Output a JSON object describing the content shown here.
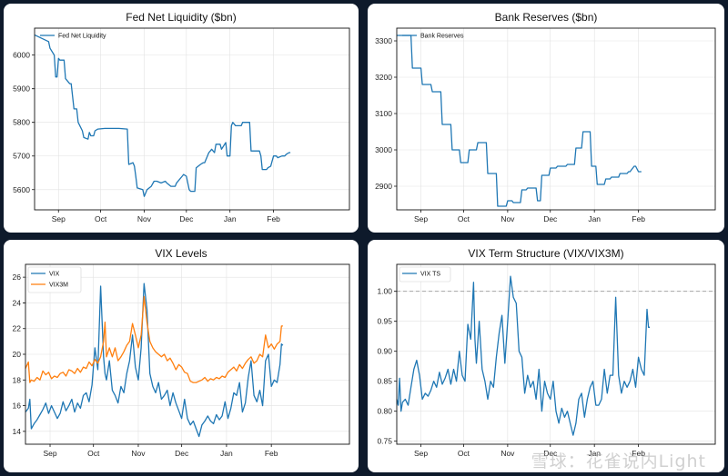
{
  "colors": {
    "blue": "#1f77b4",
    "orange": "#ff7f0e",
    "grid": "#e2e2e2",
    "ref": "#999999"
  },
  "watermark": "雪球：花雀说内Light",
  "chart_data": [
    {
      "id": "liquidity",
      "type": "line",
      "title": "Fed Net Liquidity ($bn)",
      "xlabel": "",
      "ylabel": "",
      "xlim": [
        0,
        224
      ],
      "ylim": [
        5540,
        6080
      ],
      "yticks": [
        5600,
        5700,
        5800,
        5900,
        6000
      ],
      "xticks": [
        {
          "label": "Sep",
          "x": 17
        },
        {
          "label": "Oct",
          "x": 47
        },
        {
          "label": "Nov",
          "x": 78
        },
        {
          "label": "Dec",
          "x": 108
        },
        {
          "label": "Jan",
          "x": 139
        },
        {
          "label": "Feb",
          "x": 170
        }
      ],
      "legend": "top-left",
      "series": [
        {
          "name": "Fed Net Liquidity",
          "color": "blue",
          "x": [
            0,
            10,
            11,
            14,
            15,
            16,
            17,
            18,
            21,
            22,
            25,
            26,
            28,
            30,
            31,
            34,
            35,
            38,
            39,
            40,
            42,
            43,
            45,
            50,
            55,
            60,
            66,
            67,
            70,
            71,
            72,
            73,
            77,
            78,
            80,
            83,
            85,
            87,
            90,
            93,
            94,
            97,
            100,
            101,
            105,
            106,
            108,
            110,
            111,
            114,
            115,
            118,
            120,
            121,
            124,
            125,
            126,
            128,
            129,
            132,
            133,
            136,
            137,
            139,
            140,
            141,
            143,
            147,
            148,
            150,
            152,
            153,
            154,
            157,
            160,
            161,
            162,
            165,
            166,
            168,
            170,
            172,
            173,
            176,
            178,
            179,
            181,
            182
          ],
          "values": [
            6060,
            6040,
            6020,
            6000,
            5935,
            5935,
            5990,
            5985,
            5985,
            5930,
            5915,
            5915,
            5840,
            5840,
            5800,
            5775,
            5755,
            5750,
            5770,
            5760,
            5760,
            5775,
            5780,
            5782,
            5782,
            5782,
            5780,
            5675,
            5680,
            5670,
            5640,
            5605,
            5600,
            5580,
            5600,
            5610,
            5625,
            5625,
            5620,
            5625,
            5620,
            5610,
            5610,
            5620,
            5640,
            5645,
            5640,
            5600,
            5595,
            5595,
            5665,
            5675,
            5680,
            5680,
            5710,
            5715,
            5720,
            5710,
            5735,
            5735,
            5720,
            5740,
            5700,
            5700,
            5790,
            5800,
            5790,
            5790,
            5800,
            5800,
            5800,
            5800,
            5715,
            5715,
            5715,
            5700,
            5660,
            5660,
            5665,
            5670,
            5700,
            5700,
            5695,
            5700,
            5700,
            5705,
            5710,
            5710
          ]
        }
      ]
    },
    {
      "id": "reserves",
      "type": "line",
      "title": "Bank Reserves ($bn)",
      "xlabel": "",
      "ylabel": "",
      "xlim": [
        0,
        224
      ],
      "ylim": [
        2835,
        3335
      ],
      "yticks": [
        2900,
        3000,
        3100,
        3200,
        3300
      ],
      "xticks": [
        {
          "label": "Sep",
          "x": 17
        },
        {
          "label": "Oct",
          "x": 47
        },
        {
          "label": "Nov",
          "x": 78
        },
        {
          "label": "Dec",
          "x": 108
        },
        {
          "label": "Jan",
          "x": 139
        },
        {
          "label": "Feb",
          "x": 170
        }
      ],
      "legend": "top-left",
      "series": [
        {
          "name": "Bank Reserves",
          "color": "blue",
          "x": [
            0,
            10,
            11,
            17,
            18,
            24,
            25,
            31,
            32,
            38,
            39,
            44,
            45,
            50,
            51,
            56,
            57,
            63,
            64,
            70,
            71,
            77,
            78,
            81,
            82,
            87,
            88,
            91,
            92,
            94,
            95,
            98,
            99,
            101,
            102,
            107,
            108,
            112,
            113,
            119,
            120,
            125,
            126,
            130,
            131,
            136,
            137,
            140,
            141,
            146,
            147,
            150,
            151,
            156,
            157,
            162,
            163,
            164,
            167,
            168,
            170,
            171,
            172
          ],
          "values": [
            3315,
            3315,
            3225,
            3225,
            3180,
            3180,
            3160,
            3160,
            3070,
            3070,
            3000,
            3000,
            2965,
            2965,
            3000,
            3000,
            3020,
            3020,
            2935,
            2935,
            2845,
            2845,
            2860,
            2860,
            2855,
            2855,
            2890,
            2890,
            2895,
            2895,
            2895,
            2895,
            2860,
            2860,
            2930,
            2930,
            2950,
            2950,
            2955,
            2955,
            2960,
            2960,
            3005,
            3005,
            3050,
            3050,
            2955,
            2955,
            2905,
            2905,
            2920,
            2920,
            2925,
            2925,
            2935,
            2935,
            2940,
            2940,
            2955,
            2955,
            2940,
            2940,
            2940
          ]
        }
      ]
    },
    {
      "id": "vix",
      "type": "line",
      "title": "VIX Levels",
      "xlabel": "",
      "ylabel": "",
      "xlim": [
        0,
        224
      ],
      "ylim": [
        13,
        27
      ],
      "yticks": [
        14,
        16,
        18,
        20,
        22,
        24,
        26
      ],
      "xticks": [
        {
          "label": "Sep",
          "x": 17
        },
        {
          "label": "Oct",
          "x": 47
        },
        {
          "label": "Nov",
          "x": 78
        },
        {
          "label": "Dec",
          "x": 108
        },
        {
          "label": "Jan",
          "x": 139
        },
        {
          "label": "Feb",
          "x": 170
        }
      ],
      "legend": "top-left",
      "series": [
        {
          "name": "VIX",
          "color": "blue",
          "x": [
            0,
            2,
            3,
            4,
            6,
            8,
            10,
            12,
            14,
            16,
            18,
            20,
            22,
            24,
            26,
            28,
            30,
            32,
            34,
            36,
            38,
            40,
            42,
            44,
            46,
            48,
            50,
            52,
            54,
            55,
            56,
            58,
            60,
            62,
            64,
            66,
            68,
            70,
            72,
            74,
            76,
            78,
            80,
            82,
            84,
            86,
            88,
            90,
            92,
            94,
            96,
            98,
            100,
            102,
            104,
            106,
            108,
            110,
            112,
            114,
            116,
            118,
            120,
            122,
            124,
            126,
            128,
            130,
            132,
            134,
            136,
            138,
            140,
            142,
            144,
            146,
            148,
            150,
            152,
            154,
            156,
            158,
            160,
            162,
            164,
            166,
            168,
            170,
            172,
            174,
            176,
            177,
            178
          ],
          "values": [
            15.5,
            15.8,
            16.5,
            14.2,
            14.6,
            14.9,
            15.3,
            15.7,
            16.2,
            15.4,
            16.0,
            15.5,
            15.0,
            15.4,
            16.3,
            15.6,
            16.0,
            16.5,
            15.5,
            16.2,
            15.8,
            16.8,
            17.0,
            16.3,
            17.6,
            20.5,
            18.8,
            25.3,
            19.8,
            18.5,
            18.0,
            19.5,
            17.2,
            16.8,
            16.2,
            17.5,
            17.0,
            18.5,
            19.5,
            21.5,
            19.0,
            18.0,
            20.5,
            25.5,
            23.5,
            18.5,
            17.5,
            17.0,
            17.8,
            16.5,
            16.8,
            17.2,
            16.0,
            17.0,
            16.2,
            15.6,
            15.0,
            16.5,
            15.0,
            14.5,
            14.8,
            14.2,
            13.6,
            14.5,
            14.8,
            15.2,
            14.8,
            14.6,
            15.3,
            14.9,
            15.2,
            16.3,
            15.0,
            15.8,
            17.0,
            16.8,
            17.8,
            15.5,
            16.2,
            18.2,
            19.5,
            16.8,
            16.3,
            17.2,
            16.0,
            19.5,
            20.0,
            17.5,
            18.0,
            17.8,
            19.2,
            20.8,
            20.7
          ]
        },
        {
          "name": "VIX3M",
          "color": "orange",
          "x": [
            0,
            2,
            3,
            4,
            6,
            8,
            10,
            12,
            14,
            16,
            18,
            20,
            22,
            24,
            26,
            28,
            30,
            32,
            34,
            36,
            38,
            40,
            42,
            44,
            46,
            48,
            50,
            52,
            54,
            55,
            56,
            58,
            60,
            62,
            64,
            66,
            68,
            70,
            72,
            74,
            76,
            78,
            80,
            82,
            84,
            86,
            88,
            90,
            92,
            94,
            96,
            98,
            100,
            102,
            104,
            106,
            108,
            110,
            112,
            114,
            116,
            118,
            120,
            122,
            124,
            126,
            128,
            130,
            132,
            134,
            136,
            138,
            140,
            142,
            144,
            146,
            148,
            150,
            152,
            154,
            156,
            158,
            160,
            162,
            164,
            166,
            168,
            170,
            172,
            174,
            176,
            177,
            178
          ],
          "values": [
            18.9,
            19.4,
            17.8,
            18.0,
            17.9,
            18.2,
            18.0,
            18.7,
            18.4,
            18.6,
            18.1,
            18.3,
            18.2,
            18.5,
            18.6,
            18.3,
            18.8,
            18.7,
            18.5,
            18.9,
            18.6,
            19.0,
            18.9,
            19.4,
            19.1,
            19.6,
            19.3,
            19.8,
            21.0,
            22.5,
            19.8,
            20.5,
            19.8,
            20.5,
            19.5,
            19.8,
            20.2,
            20.7,
            21.0,
            22.4,
            21.5,
            20.5,
            21.5,
            24.5,
            22.5,
            21.0,
            20.5,
            20.2,
            20.0,
            19.8,
            20.0,
            19.5,
            19.7,
            19.3,
            18.8,
            19.2,
            19.0,
            18.6,
            18.5,
            17.9,
            17.8,
            17.8,
            17.9,
            18.0,
            18.2,
            17.9,
            18.1,
            18.0,
            18.2,
            18.1,
            18.3,
            18.2,
            18.6,
            18.8,
            19.0,
            18.7,
            19.2,
            18.9,
            19.3,
            19.6,
            19.8,
            19.3,
            19.5,
            20.0,
            19.8,
            21.5,
            20.5,
            20.8,
            20.4,
            20.8,
            21.0,
            22.2,
            22.2
          ]
        }
      ]
    },
    {
      "id": "vix_ts",
      "type": "line",
      "title": "VIX Term Structure (VIX/VIX3M)",
      "xlabel": "",
      "ylabel": "",
      "xlim": [
        0,
        224
      ],
      "ylim": [
        0.745,
        1.045
      ],
      "yticks": [
        0.75,
        0.8,
        0.85,
        0.9,
        0.95,
        1.0
      ],
      "xticks": [
        {
          "label": "Sep",
          "x": 17
        },
        {
          "label": "Oct",
          "x": 47
        },
        {
          "label": "Nov",
          "x": 78
        },
        {
          "label": "Dec",
          "x": 108
        },
        {
          "label": "Jan",
          "x": 139
        },
        {
          "label": "Feb",
          "x": 170
        }
      ],
      "reference_line": 1.0,
      "legend": "top-left",
      "series": [
        {
          "name": "VIX TS",
          "color": "blue",
          "x": [
            0,
            1,
            2,
            3,
            4,
            6,
            8,
            10,
            12,
            14,
            16,
            18,
            20,
            22,
            24,
            26,
            28,
            30,
            32,
            34,
            36,
            38,
            40,
            42,
            44,
            46,
            48,
            50,
            52,
            54,
            55,
            56,
            58,
            60,
            62,
            64,
            66,
            68,
            70,
            72,
            74,
            76,
            78,
            80,
            82,
            84,
            86,
            88,
            90,
            92,
            94,
            96,
            98,
            100,
            102,
            104,
            106,
            108,
            110,
            112,
            114,
            116,
            118,
            120,
            122,
            124,
            126,
            128,
            130,
            132,
            134,
            136,
            138,
            140,
            142,
            144,
            146,
            148,
            150,
            152,
            154,
            156,
            158,
            160,
            162,
            164,
            166,
            168,
            170,
            172,
            174,
            176,
            177,
            178
          ],
          "values": [
            0.82,
            0.81,
            0.855,
            0.8,
            0.815,
            0.82,
            0.81,
            0.84,
            0.87,
            0.885,
            0.86,
            0.82,
            0.83,
            0.825,
            0.835,
            0.85,
            0.84,
            0.865,
            0.845,
            0.855,
            0.87,
            0.845,
            0.87,
            0.85,
            0.9,
            0.86,
            0.85,
            0.945,
            0.92,
            1.015,
            0.92,
            0.88,
            0.95,
            0.87,
            0.85,
            0.82,
            0.85,
            0.84,
            0.89,
            0.93,
            0.96,
            0.88,
            0.95,
            1.025,
            0.99,
            0.98,
            0.9,
            0.89,
            0.83,
            0.86,
            0.84,
            0.85,
            0.82,
            0.87,
            0.8,
            0.85,
            0.83,
            0.82,
            0.85,
            0.8,
            0.78,
            0.805,
            0.79,
            0.8,
            0.78,
            0.76,
            0.78,
            0.82,
            0.83,
            0.79,
            0.82,
            0.84,
            0.85,
            0.81,
            0.81,
            0.82,
            0.87,
            0.83,
            0.86,
            0.86,
            0.99,
            0.86,
            0.83,
            0.85,
            0.84,
            0.85,
            0.87,
            0.84,
            0.89,
            0.87,
            0.86,
            0.97,
            0.94,
            0.94
          ]
        }
      ]
    }
  ]
}
